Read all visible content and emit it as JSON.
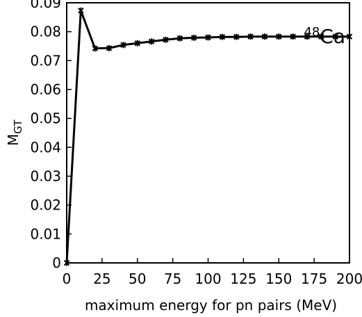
{
  "chart_data": {
    "type": "line",
    "title": "",
    "xlabel": "maximum energy for pn pairs (MeV)",
    "ylabel_main": "M",
    "ylabel_sub": "GT",
    "annotation_sup": "48",
    "annotation_main": "Ca",
    "xlim": [
      0,
      200
    ],
    "ylim": [
      0,
      0.09
    ],
    "xticks": [
      0,
      25,
      50,
      75,
      100,
      125,
      150,
      175,
      200
    ],
    "xtick_labels": [
      "0",
      "25",
      "50",
      "75",
      "100",
      "125",
      "150",
      "175",
      "200"
    ],
    "yticks": [
      0,
      0.01,
      0.02,
      0.03,
      0.04,
      0.05,
      0.06,
      0.07,
      0.08,
      0.09
    ],
    "ytick_labels": [
      "0",
      "0.01",
      "0.02",
      "0.03",
      "0.04",
      "0.05",
      "0.06",
      "0.07",
      "0.08",
      "0.09"
    ],
    "grid": false,
    "series": [
      {
        "x": [
          0,
          10,
          20,
          30,
          40,
          50,
          60,
          70,
          80,
          90,
          100,
          110,
          120,
          130,
          140,
          150,
          160,
          170,
          180,
          190,
          200
        ],
        "y": [
          0.0,
          0.0873,
          0.0742,
          0.0743,
          0.0754,
          0.076,
          0.0766,
          0.0772,
          0.0777,
          0.0779,
          0.078,
          0.0782,
          0.0782,
          0.0783,
          0.0783,
          0.0783,
          0.0783,
          0.0783,
          0.0783,
          0.0783,
          0.0783
        ]
      }
    ]
  }
}
